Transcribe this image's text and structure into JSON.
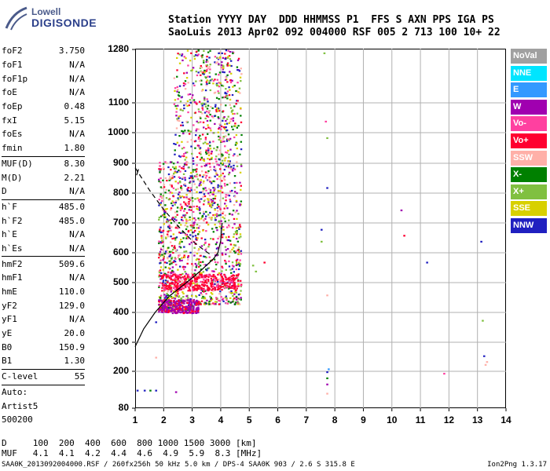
{
  "logo": {
    "line1": "Lowell",
    "line2": "DIGISONDE"
  },
  "header": {
    "line1": "Station YYYY DAY  DDD HHMMSS P1  FFS S AXN PPS IGA PS",
    "line2": "SaoLuis 2013 Apr02 092 004000 RSF 005 2 713 100 10+ 22"
  },
  "params": {
    "group1": [
      {
        "name": "foF2",
        "value": "3.750"
      },
      {
        "name": "foF1",
        "value": "N/A"
      },
      {
        "name": "foF1p",
        "value": "N/A"
      },
      {
        "name": "foE",
        "value": "N/A"
      },
      {
        "name": "foEp",
        "value": "0.48"
      },
      {
        "name": "fxI",
        "value": "5.15"
      },
      {
        "name": "foEs",
        "value": "N/A"
      },
      {
        "name": "fmin",
        "value": "1.80"
      }
    ],
    "group2": [
      {
        "name": "MUF(D)",
        "value": "8.30"
      },
      {
        "name": "M(D)",
        "value": "2.21"
      },
      {
        "name": "D",
        "value": "N/A"
      }
    ],
    "group3": [
      {
        "name": "h`F",
        "value": "485.0"
      },
      {
        "name": "h`F2",
        "value": "485.0"
      },
      {
        "name": "h`E",
        "value": "N/A"
      },
      {
        "name": "h`Es",
        "value": "N/A"
      }
    ],
    "group4": [
      {
        "name": "hmF2",
        "value": "509.6"
      },
      {
        "name": "hmF1",
        "value": "N/A"
      },
      {
        "name": "hmE",
        "value": "110.0"
      },
      {
        "name": "yF2",
        "value": "129.0"
      },
      {
        "name": "yF1",
        "value": "N/A"
      },
      {
        "name": "yE",
        "value": "20.0"
      },
      {
        "name": "B0",
        "value": "150.9"
      },
      {
        "name": "B1",
        "value": "1.30"
      }
    ],
    "clevel": {
      "name": "C-level",
      "value": "55"
    },
    "auto": [
      "Auto:",
      "Artist5",
      "500200"
    ]
  },
  "legend": [
    {
      "label": "NoVal",
      "color": "#a0a0a0"
    },
    {
      "label": "NNE",
      "color": "#00e5ff"
    },
    {
      "label": "E",
      "color": "#3399ff"
    },
    {
      "label": "W",
      "color": "#a000b0"
    },
    {
      "label": "Vo-",
      "color": "#ff40a0"
    },
    {
      "label": "Vo+",
      "color": "#ff0030"
    },
    {
      "label": "SSW",
      "color": "#ffb0a8"
    },
    {
      "label": "X-",
      "color": "#008000"
    },
    {
      "label": "X+",
      "color": "#80c040"
    },
    {
      "label": "SSE",
      "color": "#d8d000"
    },
    {
      "label": "NNW",
      "color": "#2020c0"
    }
  ],
  "chart_data": {
    "type": "scatter",
    "x_ticks": [
      "1",
      "2",
      "3",
      "4",
      "5",
      "6",
      "7",
      "8",
      "9",
      "10",
      "11",
      "12",
      "13",
      "14"
    ],
    "y_ticks": [
      "80",
      "200",
      "300",
      "400",
      "500",
      "600",
      "700",
      "800",
      "900",
      "1000",
      "1100",
      "1280"
    ],
    "xlim": [
      1,
      14
    ],
    "ylim": [
      80,
      1280
    ],
    "grid": true
  },
  "muf_table": {
    "line1": "D     100  200  400  600  800 1000 1500 3000 [km]",
    "line2": "MUF   4.1  4.1  4.2  4.4  4.6  4.9  5.9  8.3 [MHz]"
  },
  "footer": {
    "left": "SAA0K_2013092004000.RSF / 260fx256h 50 kHz 5.0 km / DPS-4 SAA0K 903 / 2.6 S 315.8 E",
    "right": "Ion2Png 1.3.17"
  }
}
